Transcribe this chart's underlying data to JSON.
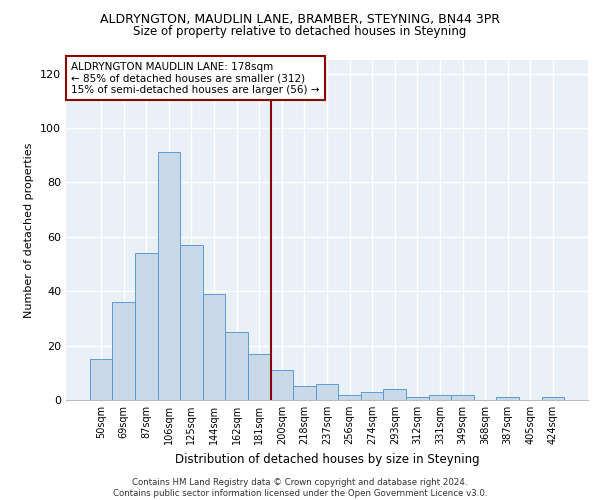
{
  "title": "ALDRYNGTON, MAUDLIN LANE, BRAMBER, STEYNING, BN44 3PR",
  "subtitle": "Size of property relative to detached houses in Steyning",
  "xlabel": "Distribution of detached houses by size in Steyning",
  "ylabel": "Number of detached properties",
  "bar_values": [
    15,
    36,
    54,
    91,
    57,
    39,
    25,
    17,
    11,
    5,
    6,
    2,
    3,
    4,
    1,
    2,
    2,
    0,
    1,
    0,
    1
  ],
  "categories": [
    "50sqm",
    "69sqm",
    "87sqm",
    "106sqm",
    "125sqm",
    "144sqm",
    "162sqm",
    "181sqm",
    "200sqm",
    "218sqm",
    "237sqm",
    "256sqm",
    "274sqm",
    "293sqm",
    "312sqm",
    "331sqm",
    "349sqm",
    "368sqm",
    "387sqm",
    "405sqm",
    "424sqm"
  ],
  "bar_color": "#c9d9e8",
  "bar_edge_color": "#5b9bd5",
  "bar_width": 1.0,
  "ylim": [
    0,
    125
  ],
  "yticks": [
    0,
    20,
    40,
    60,
    80,
    100,
    120
  ],
  "property_label": "ALDRYNGTON MAUDLIN LANE: 178sqm",
  "pct_smaller": "85% of detached houses are smaller (312)",
  "pct_larger": "15% of semi-detached houses are larger (56)",
  "vline_position": 7.5,
  "bg_color": "#eaf0f8",
  "grid_color": "#ffffff",
  "title_fontsize": 9,
  "subtitle_fontsize": 8.5,
  "footer": "Contains HM Land Registry data © Crown copyright and database right 2024.\nContains public sector information licensed under the Open Government Licence v3.0."
}
